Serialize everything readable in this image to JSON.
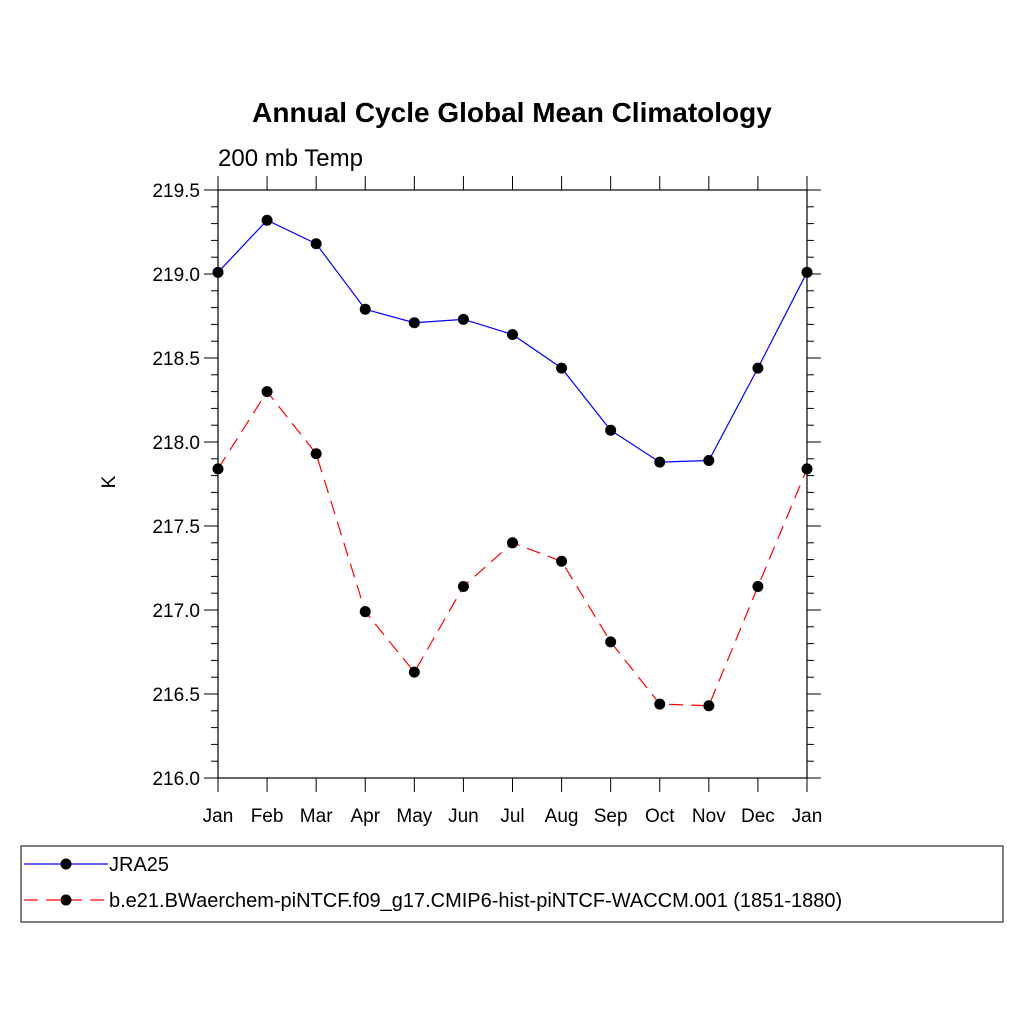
{
  "chart_data": {
    "type": "line",
    "title": "Annual Cycle Global Mean Climatology",
    "subtitle": "200 mb Temp",
    "xlabel": "",
    "ylabel": "K",
    "categories": [
      "Jan",
      "Feb",
      "Mar",
      "Apr",
      "May",
      "Jun",
      "Jul",
      "Aug",
      "Sep",
      "Oct",
      "Nov",
      "Dec",
      "Jan"
    ],
    "ylim": [
      216.0,
      219.5
    ],
    "yticks": [
      216.0,
      216.5,
      217.0,
      217.5,
      218.0,
      218.5,
      219.0,
      219.5
    ],
    "ytick_labels": [
      "216.0",
      "216.5",
      "217.0",
      "217.5",
      "218.0",
      "218.5",
      "219.0",
      "219.5"
    ],
    "series": [
      {
        "name": "JRA25",
        "color": "#0000ff",
        "dash": "solid",
        "marker": "filled-circle",
        "values": [
          219.01,
          219.32,
          219.18,
          218.79,
          218.71,
          218.73,
          218.64,
          218.44,
          218.07,
          217.88,
          217.89,
          218.44,
          219.01
        ]
      },
      {
        "name": "b.e21.BWaerchem-piNTCF.f09_g17.CMIP6-hist-piNTCF-WACCM.001 (1851-1880)",
        "color": "#ff0000",
        "dash": "dashed",
        "marker": "filled-circle",
        "values": [
          217.84,
          218.3,
          217.93,
          216.99,
          216.63,
          217.14,
          217.4,
          217.29,
          216.81,
          216.44,
          216.43,
          217.14,
          217.84
        ]
      }
    ],
    "legend_position": "bottom"
  }
}
